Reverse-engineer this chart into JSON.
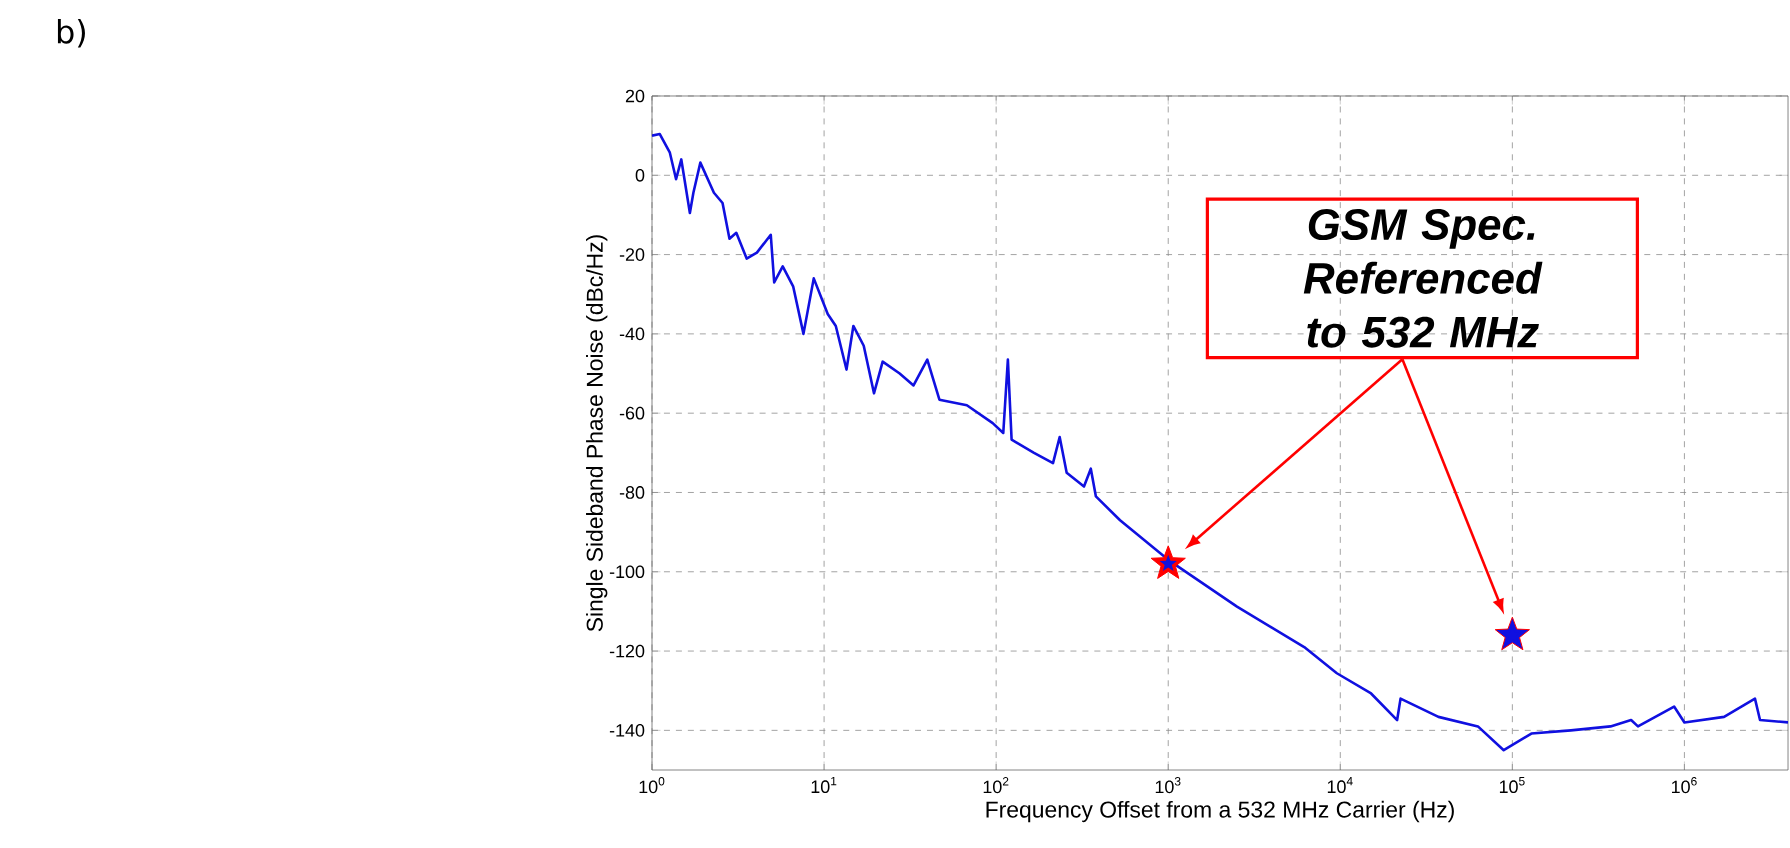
{
  "chart_data": {
    "type": "line",
    "xlabel": "Frequency Offset from a 532 MHz Carrier (Hz)",
    "ylabel": "Single Sideband Phase Noise (dBc/Hz)",
    "annotations": [
      "b)",
      "GSM Spec. Referenced to 532 MHz"
    ],
    "log": "x",
    "grid": true,
    "xlim": [
      1,
      4000000
    ],
    "ylim": [
      -150,
      20
    ],
    "xticks": [
      {
        "value": 1,
        "label": "10$^{0}$"
      },
      {
        "value": 10,
        "label": "10$^{1}$"
      },
      {
        "value": 100,
        "label": "10$^{2}$"
      },
      {
        "value": 1000,
        "label": "10$^{3}$"
      },
      {
        "value": 10000,
        "label": "10$^{4}$"
      },
      {
        "value": 100000,
        "label": "10$^{5}$"
      },
      {
        "value": 1000000,
        "label": "10$^{6}$"
      }
    ],
    "yticks": [
      -140,
      -120,
      -100,
      -80,
      -60,
      -40,
      -20,
      0,
      20
    ],
    "series": [
      {
        "color": "#1010e0",
        "x": [
          1,
          1.11,
          1.27,
          1.38,
          1.48,
          1.66,
          1.74,
          1.91,
          2.29,
          2.57,
          2.82,
          3.09,
          3.55,
          4.07,
          4.9,
          5.13,
          5.75,
          6.61,
          7.59,
          8.71,
          10.5,
          11.7,
          13.5,
          14.8,
          17,
          19.5,
          21.9,
          27.5,
          33.1,
          39.8,
          46.8,
          67.6,
          95.5,
          110,
          117,
          123,
          166,
          214,
          234,
          257,
          324,
          355,
          380,
          525,
          1000,
          2510,
          6170,
          9550,
          15100,
          21400,
          22400,
          37200,
          63100,
          89100,
          129000,
          219000,
          372000,
          490000,
          537000,
          871000,
          1000000,
          1700000,
          2570000,
          2750000,
          4000000
        ],
        "values": [
          10,
          10.4,
          5.7,
          -1,
          4,
          -9.5,
          -4.4,
          3.2,
          -4.4,
          -7,
          -16,
          -14.5,
          -21,
          -19.5,
          -15,
          -27,
          -23,
          -28,
          -40,
          -26,
          -35,
          -38,
          -49,
          -38,
          -43,
          -55,
          -47,
          -50,
          -53,
          -46.5,
          -56.6,
          -58,
          -62.5,
          -65,
          -46.5,
          -66.7,
          -70,
          -72.6,
          -66,
          -75,
          -78.5,
          -74,
          -81,
          -87,
          -97,
          -108.8,
          -119,
          -125.6,
          -130.7,
          -137.4,
          -132,
          -136.6,
          -139,
          -145,
          -140.8,
          -140,
          -139,
          -137.4,
          -139,
          -134,
          -138,
          -136.6,
          -132,
          -137.4,
          -138
        ]
      },
      {
        "type": "scatter",
        "color": "#ff0000",
        "marker": "star",
        "x": [
          1000,
          100000
        ],
        "values": [
          -98,
          -116
        ]
      }
    ]
  }
}
